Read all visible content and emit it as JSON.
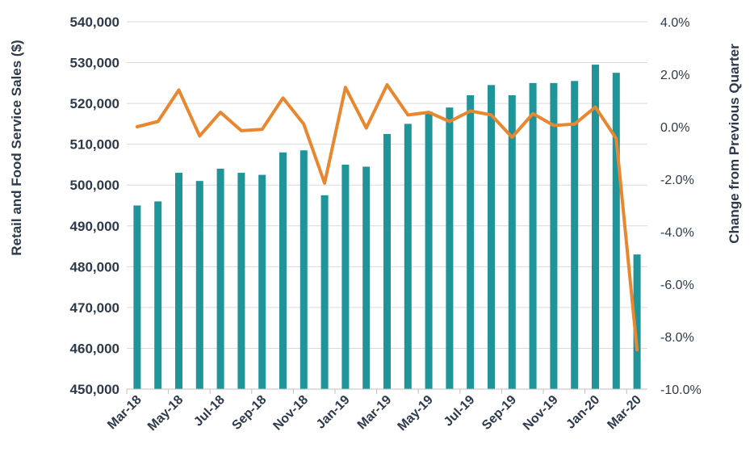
{
  "chart_data": {
    "type": "bar",
    "title": "",
    "ylabel": "Retail and Food Service Sales ($)",
    "ylabel_right": "Change from Previous Quarter",
    "grid": true,
    "categories": [
      "Mar-18",
      "Apr-18",
      "May-18",
      "Jun-18",
      "Jul-18",
      "Aug-18",
      "Sep-18",
      "Oct-18",
      "Nov-18",
      "Dec-18",
      "Jan-19",
      "Feb-19",
      "Mar-19",
      "Apr-19",
      "May-19",
      "Jun-19",
      "Jul-19",
      "Aug-19",
      "Sep-19",
      "Oct-19",
      "Nov-19",
      "Dec-19",
      "Jan-20",
      "Feb-20",
      "Mar-20"
    ],
    "x_tick_labels": [
      "Mar-18",
      "May-18",
      "Jul-18",
      "Sep-18",
      "Nov-18",
      "Jan-19",
      "Mar-19",
      "May-19",
      "Jul-19",
      "Sep-19",
      "Nov-19",
      "Jan-20",
      "Mar-20"
    ],
    "ylim": [
      450000,
      540000
    ],
    "y_ticks": [
      "450,000",
      "460,000",
      "470,000",
      "480,000",
      "490,000",
      "500,000",
      "510,000",
      "520,000",
      "530,000",
      "540,000"
    ],
    "ylim_right": [
      -10.0,
      4.0
    ],
    "y_ticks_right": [
      "-10.0%",
      "-8.0%",
      "-6.0%",
      "-4.0%",
      "-2.0%",
      "0.0%",
      "2.0%",
      "4.0%"
    ],
    "series": [
      {
        "axis": "left",
        "kind": "bar",
        "color": "#1f9499",
        "values": [
          495000,
          496000,
          503000,
          501000,
          504000,
          503000,
          502500,
          508000,
          508500,
          497500,
          505000,
          504500,
          512500,
          515000,
          518000,
          519000,
          522000,
          524500,
          522000,
          525000,
          525000,
          525500,
          529500,
          527500,
          483000
        ]
      },
      {
        "axis": "right",
        "kind": "line",
        "color": "#e8872f",
        "values": [
          0.0,
          0.2,
          1.4,
          -0.35,
          0.55,
          -0.15,
          -0.1,
          1.1,
          0.1,
          -2.15,
          1.5,
          -0.05,
          1.6,
          0.45,
          0.55,
          0.2,
          0.6,
          0.45,
          -0.4,
          0.5,
          0.05,
          0.1,
          0.75,
          -0.45,
          -8.5
        ]
      }
    ]
  }
}
